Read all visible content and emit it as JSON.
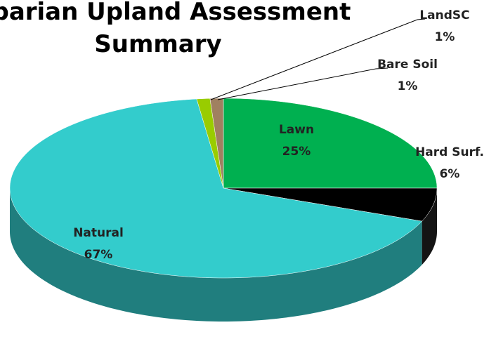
{
  "chart_data": {
    "type": "pie3d",
    "title": "Riparian Upland Assessment Summary",
    "categories": [
      "Lawn",
      "Hard Surf.",
      "Natural",
      "LandSC",
      "Bare Soil"
    ],
    "values": [
      25,
      6,
      67,
      1,
      1
    ],
    "value_labels": [
      "25%",
      "6%",
      "67%",
      "1%",
      "1%"
    ],
    "colors": [
      "#00b050",
      "#000000",
      "#33cccc",
      "#99cc00",
      "#a08060"
    ]
  }
}
